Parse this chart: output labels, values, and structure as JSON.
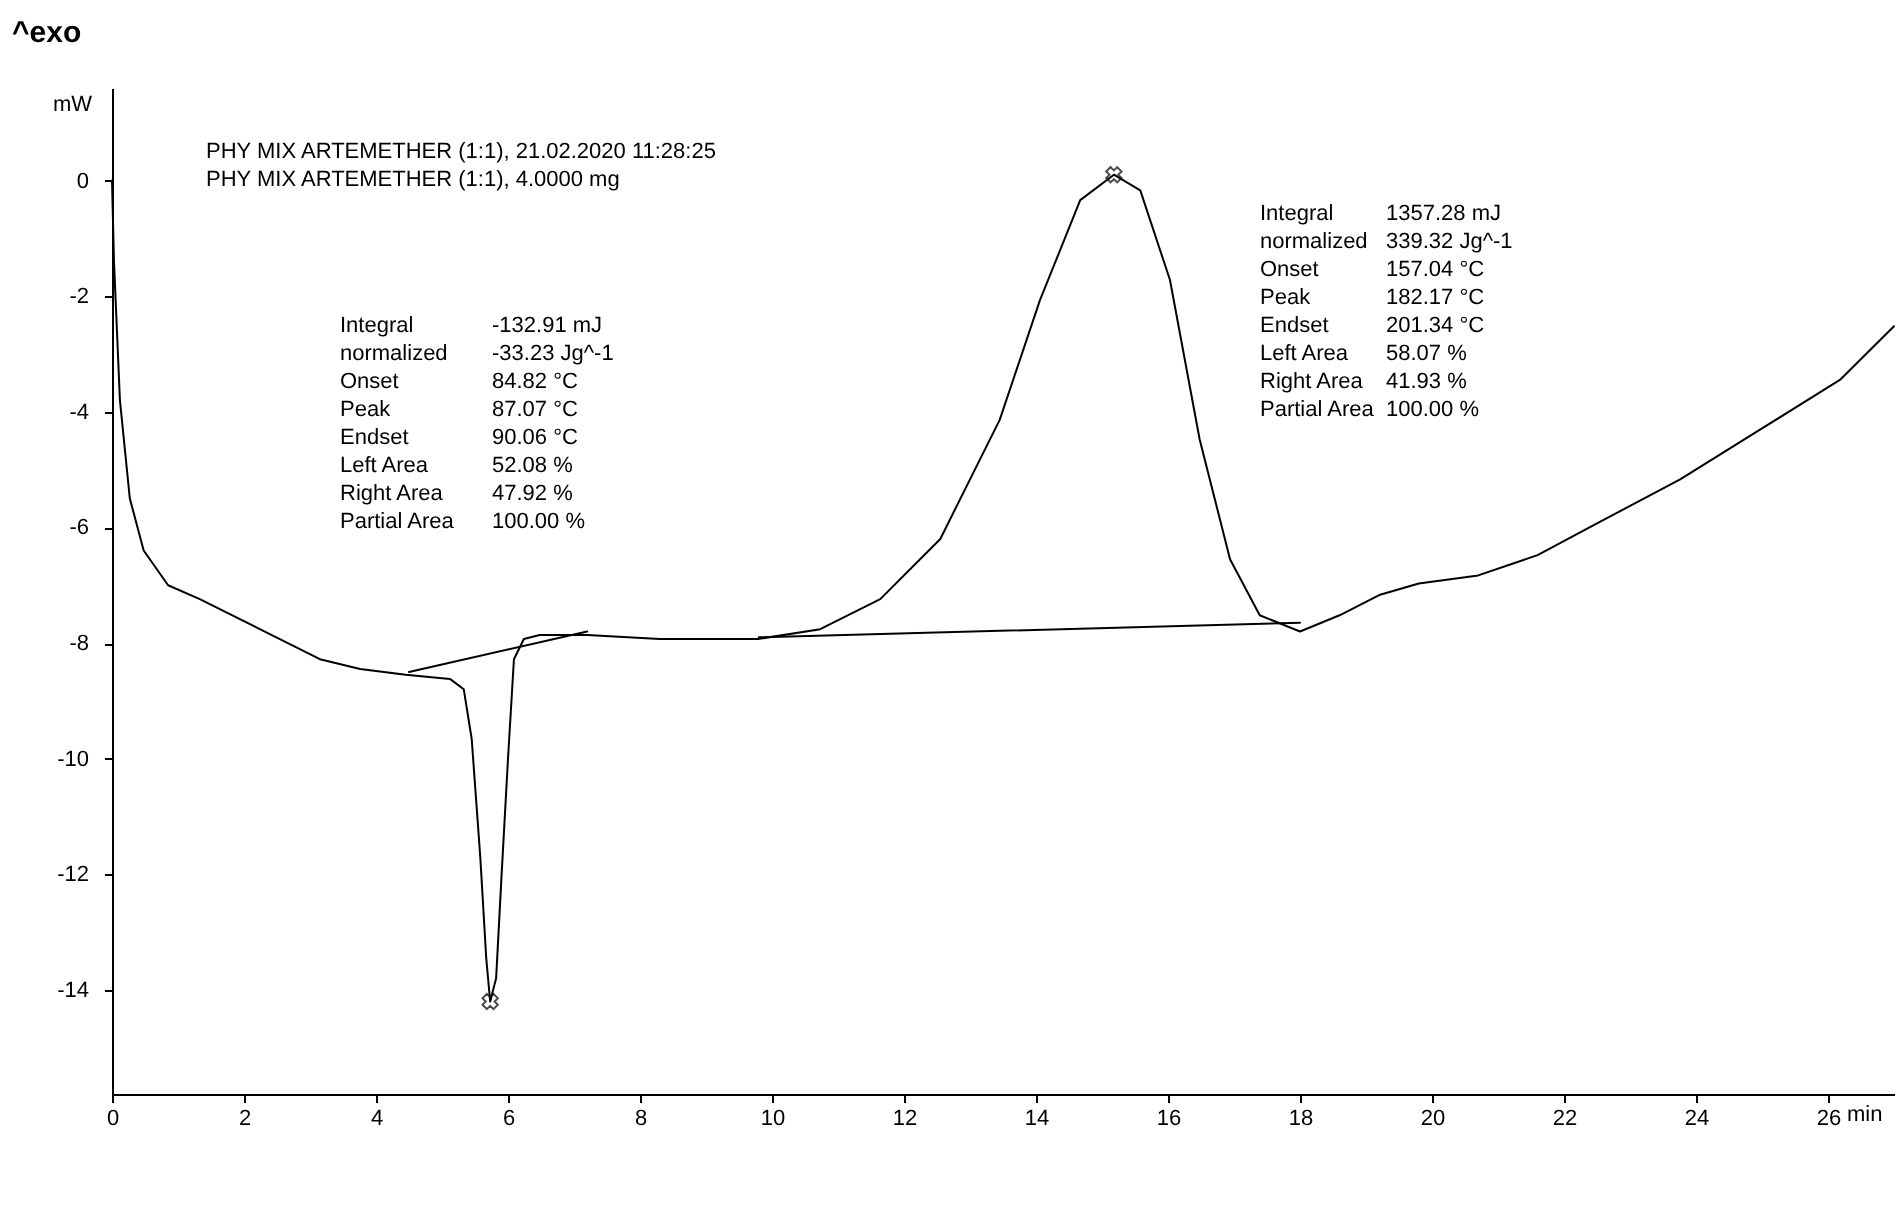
{
  "chart_data": {
    "type": "line",
    "title": "^exo",
    "xlabel": "min",
    "ylabel": "mW",
    "xlim": [
      0,
      27
    ],
    "ylim": [
      -15.8,
      1.6
    ],
    "xticks": [
      0,
      2,
      4,
      6,
      8,
      10,
      12,
      14,
      16,
      18,
      20,
      22,
      24,
      26
    ],
    "yticks": [
      -14,
      -12,
      -10,
      -8,
      -6,
      -4,
      -2,
      0
    ],
    "grid": false,
    "line_style": "solid",
    "series": [
      {
        "color": "#000000",
        "x": [
          0,
          0.03,
          0.12,
          0.27,
          0.48,
          0.85,
          1.33,
          2.24,
          3.15,
          3.76,
          4.45,
          5.12,
          5.33,
          5.45,
          5.58,
          5.67,
          5.73,
          5.82,
          5.9,
          6.0,
          6.09,
          6.24,
          6.48,
          7.2,
          8.3,
          9.79,
          10.73,
          11.64,
          12.55,
          13.45,
          14.06,
          14.67,
          15.18,
          15.58,
          16.03,
          16.48,
          16.94,
          17.39,
          18.0,
          18.6,
          19.2,
          19.8,
          20.7,
          21.6,
          22.5,
          23.76,
          24.97,
          26.18,
          27
        ],
        "values": [
          0,
          -1.4,
          -3.8,
          -5.5,
          -6.4,
          -7.0,
          -7.24,
          -7.76,
          -8.28,
          -8.45,
          -8.55,
          -8.62,
          -8.8,
          -9.66,
          -11.7,
          -13.45,
          -14.2,
          -13.8,
          -12.07,
          -10,
          -8.28,
          -7.93,
          -7.86,
          -7.86,
          -7.93,
          -7.93,
          -7.76,
          -7.24,
          -6.2,
          -4.14,
          -2.07,
          -0.34,
          0.1,
          -0.17,
          -1.72,
          -4.48,
          -6.55,
          -7.52,
          -7.8,
          -7.52,
          -7.17,
          -6.97,
          -6.83,
          -6.48,
          -5.93,
          -5.17,
          -4.31,
          -3.45,
          -2.52
        ]
      },
      {
        "color": "#000000",
        "x": [
          4.5,
          7.2
        ],
        "values": [
          -8.5,
          -7.8
        ]
      },
      {
        "color": "#000000",
        "x": [
          9.8,
          18.0
        ],
        "values": [
          -7.9,
          -7.65
        ]
      },
      {
        "type": "scatter",
        "marker": "cross",
        "color": "#000000",
        "x": [
          5.73,
          15.18
        ],
        "values": [
          -14.2,
          0.1
        ]
      }
    ],
    "annotations": [
      "PHY MIX ARTEMETHER (1:1), 21.02.2020 11:28:25\nPHY MIX ARTEMETHER (1:1), 4.0000 mg",
      "Integral\nnormalized\nOnset\nPeak\nEndset\nLeft Area\nRight Area\nPartial Area",
      "-132.91 mJ\n-33.23 Jg^-1\n84.82 °C\n87.07 °C\n90.06 °C\n52.08 %\n47.92 %\n100.00 %",
      "Integral\nnormalized\nOnset\nPeak\nEndset\nLeft Area\nRight Area\nPartial Area",
      "1357.28 mJ\n339.32 Jg^-1\n157.04 °C\n182.17 °C\n201.34 °C\n58.07 %\n41.93 %\n100.00 %"
    ]
  }
}
